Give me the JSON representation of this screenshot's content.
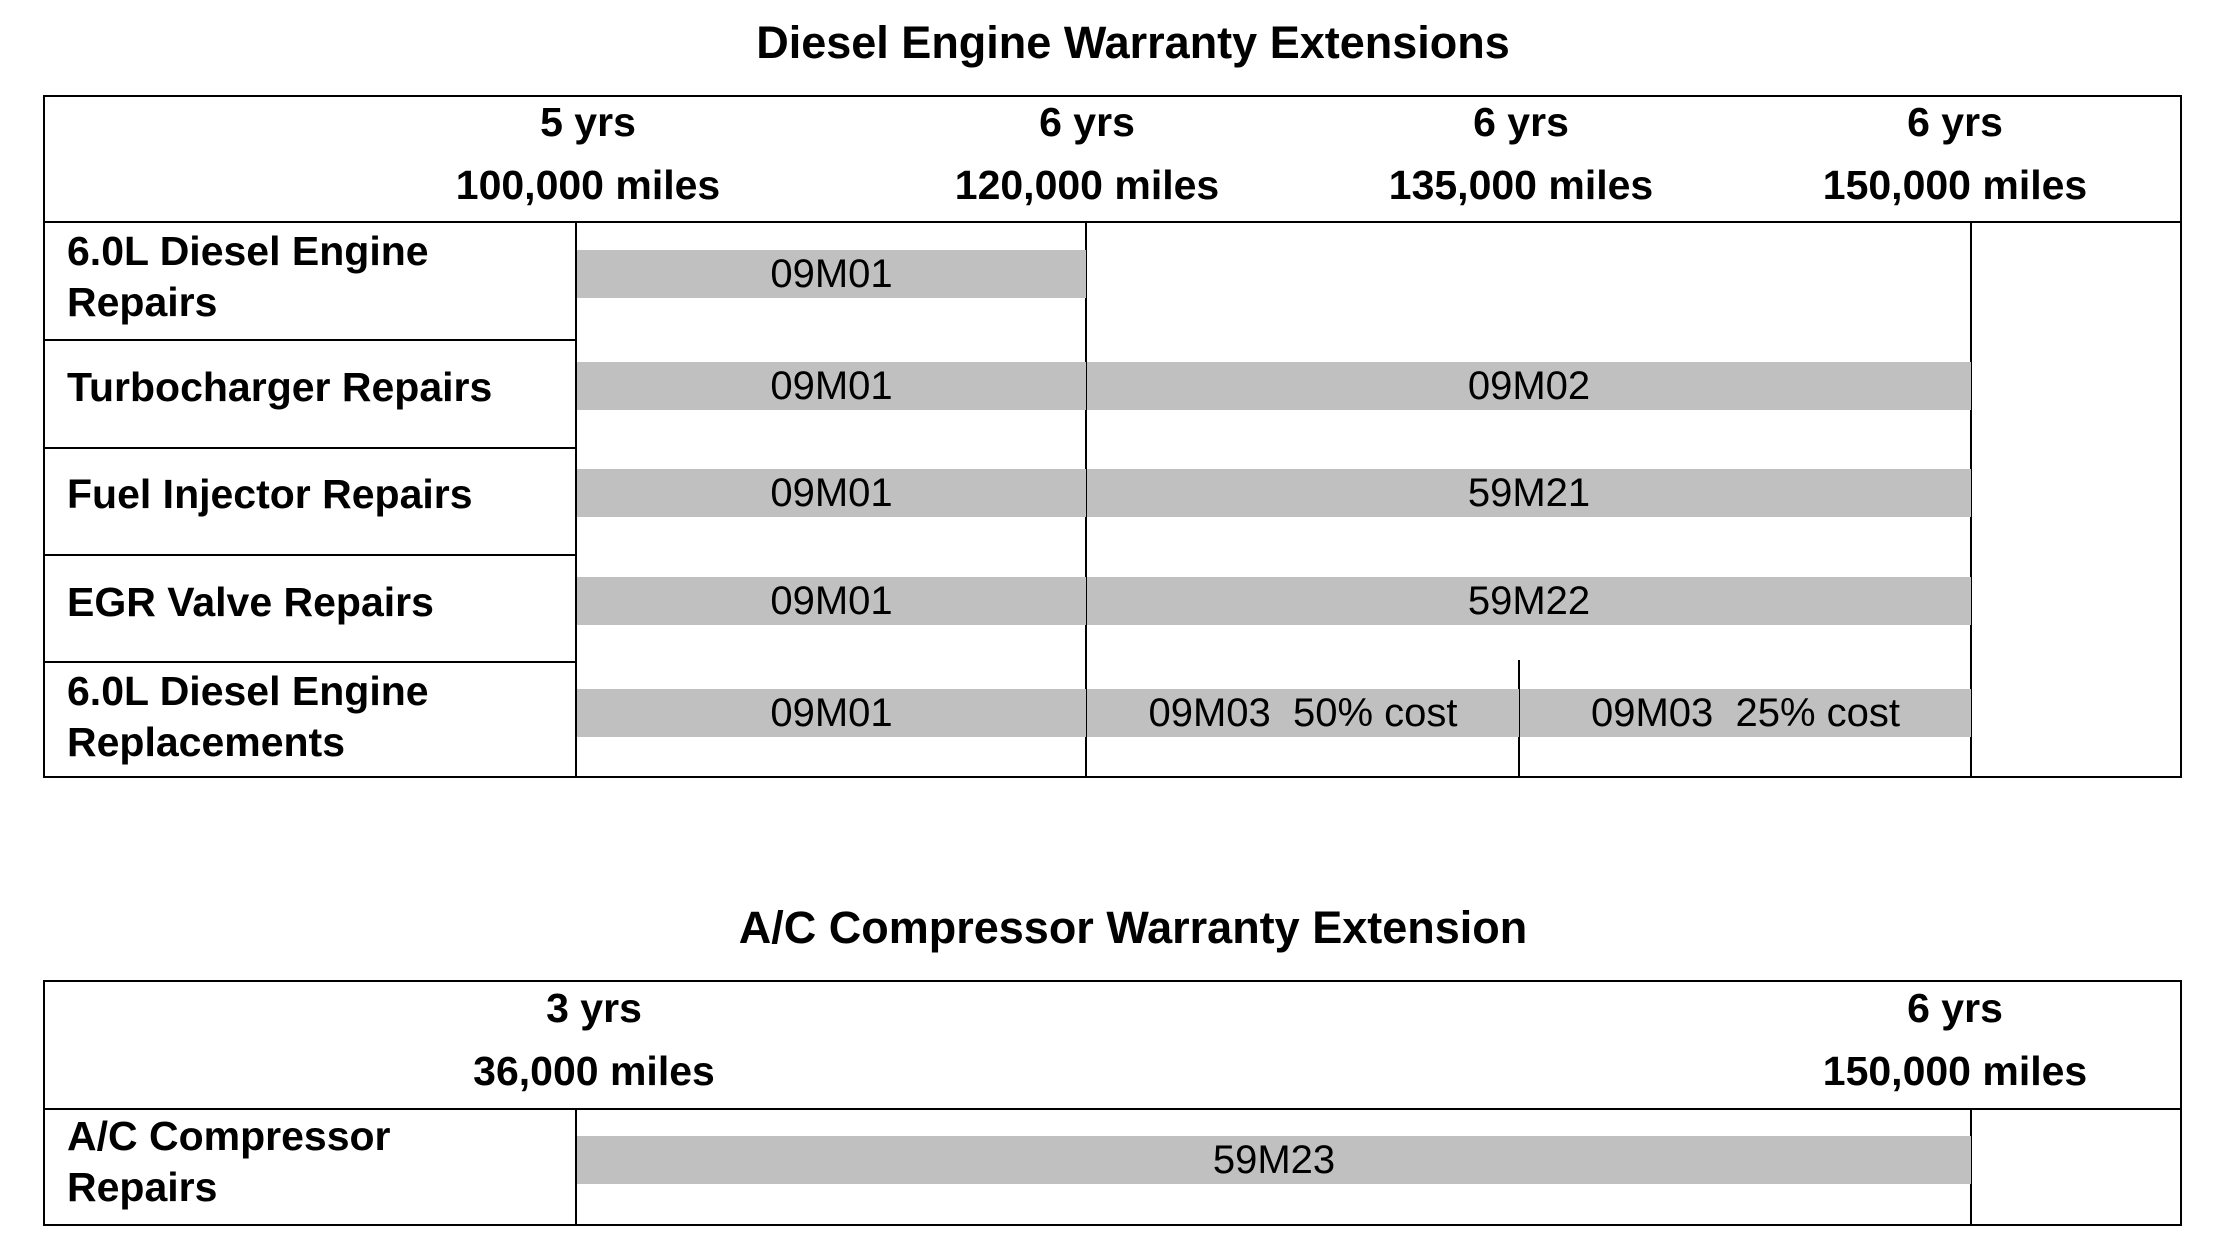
{
  "diesel": {
    "title": "Diesel Engine Warranty Extensions",
    "headers": [
      {
        "years": "5 yrs",
        "miles": "100,000 miles"
      },
      {
        "years": "6 yrs",
        "miles": "120,000 miles"
      },
      {
        "years": "6 yrs",
        "miles": "135,000 miles"
      },
      {
        "years": "6 yrs",
        "miles": "150,000 miles"
      }
    ],
    "rows": [
      {
        "label": "6.0L Diesel Engine\nRepairs",
        "bars": [
          "09M01"
        ]
      },
      {
        "label": "Turbocharger Repairs",
        "bars": [
          "09M01",
          "09M02"
        ]
      },
      {
        "label": "Fuel Injector Repairs",
        "bars": [
          "09M01",
          "59M21"
        ]
      },
      {
        "label": "EGR Valve Repairs",
        "bars": [
          "09M01",
          "59M22"
        ]
      },
      {
        "label": "6.0L Diesel Engine\nReplacements",
        "bars": [
          "09M01",
          "09M03  50% cost",
          "09M03  25% cost"
        ]
      }
    ]
  },
  "ac": {
    "title": "A/C Compressor Warranty Extension",
    "headers": [
      {
        "years": "3 yrs",
        "miles": "36,000 miles"
      },
      {
        "years": "6 yrs",
        "miles": "150,000 miles"
      }
    ],
    "rows": [
      {
        "label": "A/C Compressor\nRepairs",
        "bars": [
          "59M23"
        ]
      }
    ]
  }
}
